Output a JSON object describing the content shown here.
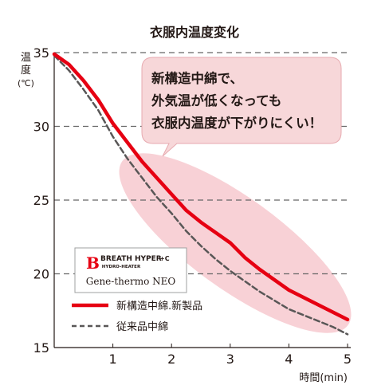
{
  "chart_data": {
    "type": "line",
    "title": "衣服内温度変化",
    "ylabel": "温度(℃)",
    "xlabel": "時間(min)",
    "xlim": [
      0,
      5
    ],
    "ylim": [
      15,
      35
    ],
    "x_ticks": [
      "1",
      "2",
      "3",
      "4",
      "5"
    ],
    "y_ticks": [
      "15",
      "20",
      "25",
      "30",
      "35"
    ],
    "grid": "horizontal dashed",
    "series": [
      {
        "name": "新構造中綿.新製品",
        "style": "solid",
        "color": "#e60012",
        "x": [
          0,
          0.25,
          0.5,
          0.75,
          1.0,
          1.25,
          1.5,
          1.75,
          2.0,
          2.25,
          2.5,
          2.75,
          3.0,
          3.25,
          3.5,
          3.75,
          4.0,
          4.25,
          4.5,
          4.75,
          5.0
        ],
        "y": [
          34.9,
          34.2,
          33.1,
          31.8,
          30.2,
          28.9,
          27.6,
          26.5,
          25.4,
          24.3,
          23.5,
          22.8,
          22.1,
          21.1,
          20.3,
          19.6,
          18.9,
          18.4,
          17.9,
          17.4,
          16.9
        ]
      },
      {
        "name": "従来品中綿",
        "style": "dashed",
        "color": "#595757",
        "x": [
          0,
          0.25,
          0.5,
          0.75,
          1.0,
          1.25,
          1.5,
          1.75,
          2.0,
          2.25,
          2.5,
          2.75,
          3.0,
          3.25,
          3.5,
          3.75,
          4.0,
          4.25,
          4.5,
          4.75,
          5.0
        ],
        "y": [
          34.8,
          33.8,
          32.5,
          31.1,
          29.3,
          27.8,
          26.5,
          25.2,
          24.1,
          22.9,
          21.9,
          21.0,
          20.2,
          19.5,
          18.8,
          18.2,
          17.6,
          17.2,
          16.8,
          16.4,
          15.9
        ]
      }
    ],
    "legend": {
      "placement": "bottom-left",
      "entries": [
        "新構造中綿.新製品",
        "従来品中綿"
      ]
    }
  },
  "callout": {
    "lines": [
      "新構造中綿で、",
      "外気温が低くなっても",
      "衣服内温度が下がりにくい！"
    ],
    "bg_color": "#f7d7d9"
  },
  "logo": {
    "brand_letter": "B",
    "brand_name": "BREATH HYPER",
    "brand_suffix": "+C",
    "brand_sub": "HYDRO-HEATER",
    "product": "Gene-thermo NEO"
  },
  "colors": {
    "new_line": "#e60012",
    "old_line": "#595757",
    "highlight": "#f6c6cc",
    "grid": "#666666"
  }
}
